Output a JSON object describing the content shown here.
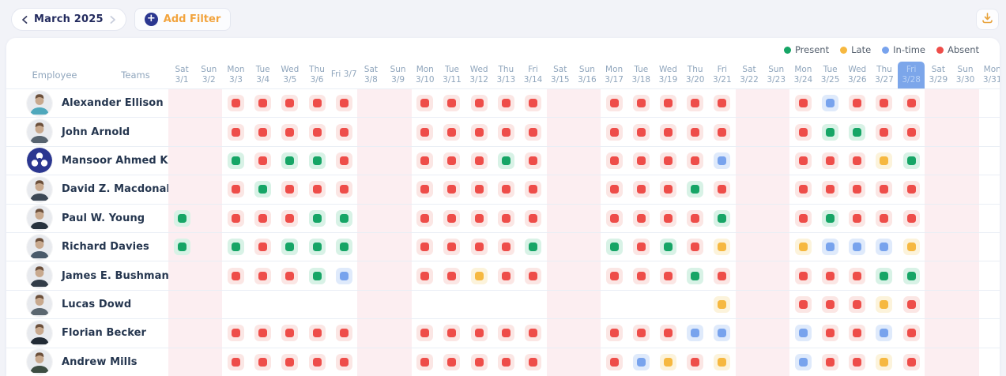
{
  "toolbar": {
    "month_label": "March 2025",
    "add_filter_label": "Add Filter",
    "navy_accent": "#2B3790",
    "orange_accent": "#F2A43E"
  },
  "export_button": {
    "icon": "download-tray-icon",
    "color": "#E8A33D"
  },
  "legend": [
    {
      "label": "Present",
      "key": "P",
      "color": "#16A566",
      "tint": "#D8F2E6"
    },
    {
      "label": "Late",
      "key": "L",
      "color": "#F6B840",
      "tint": "#FCF3DB"
    },
    {
      "label": "In-time",
      "key": "I",
      "color": "#78A3ED",
      "tint": "#DFEAFB"
    },
    {
      "label": "Absent",
      "key": "A",
      "color": "#EE4D49",
      "tint": "#FBE6E4"
    }
  ],
  "status_codes": {
    "P": "present",
    "L": "late",
    "I": "in-time",
    "A": "absent",
    ".": "none"
  },
  "table": {
    "employee_header": "Employee",
    "teams_header": "Teams",
    "weekend_bg": "#FCEEF1",
    "highlight_bg": "#7CA6EA",
    "highlighted_date": "3/28",
    "days": [
      {
        "dow": "Sat",
        "date": "3/1",
        "weekend": true
      },
      {
        "dow": "Sun",
        "date": "3/2",
        "weekend": true
      },
      {
        "dow": "Mon",
        "date": "3/3",
        "weekend": false
      },
      {
        "dow": "Tue",
        "date": "3/4",
        "weekend": false
      },
      {
        "dow": "Wed",
        "date": "3/5",
        "weekend": false
      },
      {
        "dow": "Thu",
        "date": "3/6",
        "weekend": false
      },
      {
        "dow": "Fri",
        "date": "3/7",
        "weekend": false,
        "single_line": true
      },
      {
        "dow": "Sat",
        "date": "3/8",
        "weekend": true
      },
      {
        "dow": "Sun",
        "date": "3/9",
        "weekend": true
      },
      {
        "dow": "Mon",
        "date": "3/10",
        "weekend": false
      },
      {
        "dow": "Tue",
        "date": "3/11",
        "weekend": false
      },
      {
        "dow": "Wed",
        "date": "3/12",
        "weekend": false
      },
      {
        "dow": "Thu",
        "date": "3/13",
        "weekend": false
      },
      {
        "dow": "Fri",
        "date": "3/14",
        "weekend": false
      },
      {
        "dow": "Sat",
        "date": "3/15",
        "weekend": true
      },
      {
        "dow": "Sun",
        "date": "3/16",
        "weekend": true
      },
      {
        "dow": "Mon",
        "date": "3/17",
        "weekend": false
      },
      {
        "dow": "Tue",
        "date": "3/18",
        "weekend": false
      },
      {
        "dow": "Wed",
        "date": "3/19",
        "weekend": false
      },
      {
        "dow": "Thu",
        "date": "3/20",
        "weekend": false
      },
      {
        "dow": "Fri",
        "date": "3/21",
        "weekend": false
      },
      {
        "dow": "Sat",
        "date": "3/22",
        "weekend": true
      },
      {
        "dow": "Sun",
        "date": "3/23",
        "weekend": true
      },
      {
        "dow": "Mon",
        "date": "3/24",
        "weekend": false
      },
      {
        "dow": "Tue",
        "date": "3/25",
        "weekend": false
      },
      {
        "dow": "Wed",
        "date": "3/26",
        "weekend": false
      },
      {
        "dow": "Thu",
        "date": "3/27",
        "weekend": false
      },
      {
        "dow": "Fri",
        "date": "3/28",
        "weekend": false
      },
      {
        "dow": "Sat",
        "date": "3/29",
        "weekend": true
      },
      {
        "dow": "Sun",
        "date": "3/30",
        "weekend": true
      },
      {
        "dow": "Mon",
        "date": "3/31",
        "weekend": false
      }
    ],
    "employees": [
      {
        "name": "Alexander Ellison",
        "avatar": "photo",
        "statuses": "..AAAAA..AAAAA..AAAAA..AIAAA..."
      },
      {
        "name": "John Arnold",
        "avatar": "photo",
        "statuses": "..AAAAA..AAAAA..AAAAA..APPAA..."
      },
      {
        "name": "Mansoor Ahmed Khan",
        "avatar": "logo",
        "statuses": "..PAPPA..AAAPA..AAAAI..AAALP..."
      },
      {
        "name": "David Z. Macdonald",
        "avatar": "photo",
        "statuses": "..APAAA..AAAAA..AAAPA..AAAAA..."
      },
      {
        "name": "Paul W. Young",
        "avatar": "photo",
        "statuses": "P.AAAPP..AAAAA..AAAAP..APAAA..."
      },
      {
        "name": "Richard Davies",
        "avatar": "photo",
        "statuses": "P.PAPPP..AAAAP..PAPAL..LIIIL..."
      },
      {
        "name": "James E. Bushman",
        "avatar": "photo",
        "statuses": "..AAAPI..AALAA..AAAPA..AAAPP..."
      },
      {
        "name": "Lucas Dowd",
        "avatar": "photo",
        "statuses": "....................L..AAALA..."
      },
      {
        "name": "Florian Becker",
        "avatar": "photo",
        "statuses": "..AAAAA..AAAAA..AAAII..IAAIA..."
      },
      {
        "name": "Andrew Mills",
        "avatar": "photo",
        "statuses": "..AAAAA..AAAAA..AILAL..IAALA..."
      }
    ]
  }
}
